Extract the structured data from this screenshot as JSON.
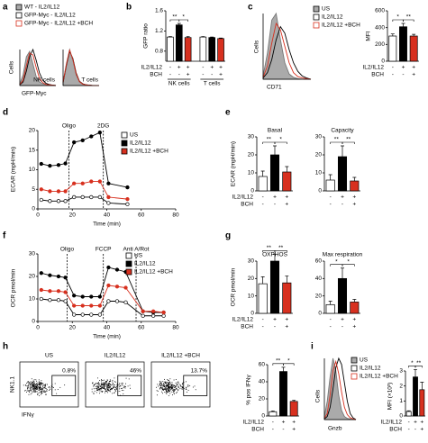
{
  "chart_data": [
    {
      "type": "density",
      "label": "a",
      "ylabel": "Cells",
      "xlabel": "GFP-Myc",
      "ylim": [
        0,
        100
      ],
      "series": [
        {
          "name": "WT - IL2/IL12",
          "color": "#aaaaaa",
          "filled": true
        },
        {
          "name": "GFP-Myc - IL2/IL12",
          "color": "#000000",
          "filled": false
        },
        {
          "name": "GFP-Myc - IL2/IL12 +BCH",
          "color": "#d7301f",
          "filled": false
        }
      ],
      "subplots": [
        {
          "title": "NK cells",
          "curves": [
            [
              5,
              30,
              80,
              95,
              60,
              25,
              10,
              5,
              3,
              2,
              1,
              0
            ],
            [
              2,
              10,
              40,
              80,
              100,
              70,
              35,
              15,
              6,
              3,
              1,
              0
            ],
            [
              3,
              15,
              55,
              90,
              85,
              50,
              20,
              8,
              3,
              2,
              1,
              0
            ]
          ]
        },
        {
          "title": "T cells",
          "curves": [
            [
              10,
              60,
              100,
              70,
              30,
              10,
              4,
              2,
              1,
              0,
              0,
              0
            ],
            [
              8,
              55,
              95,
              75,
              35,
              12,
              5,
              2,
              1,
              0,
              0,
              0
            ],
            [
              9,
              58,
              98,
              72,
              32,
              11,
              4,
              2,
              1,
              0,
              0,
              0
            ]
          ]
        }
      ]
    },
    {
      "type": "bar",
      "label": "b",
      "ylabel": "GFP ratio",
      "colors": [
        "#ffffff",
        "#000000",
        "#d7301f"
      ],
      "conditions": [
        {
          "name": "IL2/IL12",
          "signs": [
            "-",
            "+",
            "+",
            "-",
            "+",
            "+"
          ]
        },
        {
          "name": "BCH",
          "signs": [
            "-",
            "-",
            "+",
            "-",
            "-",
            "+"
          ]
        }
      ],
      "groups": [
        "NK cells",
        "T cells"
      ],
      "panels": [
        {
          "ylim": [
            0.6,
            1.6
          ],
          "yticks": [
            0.8,
            1.2,
            1.6
          ],
          "values": [
            1.08,
            1.32,
            1.07,
            1.08,
            1.07,
            1.05
          ],
          "errors": [
            0.01,
            0.03,
            0.02,
            0.01,
            0.01,
            0.01
          ],
          "stars": [
            "**",
            "*"
          ]
        }
      ]
    },
    {
      "type": "density",
      "label": "c",
      "ylabel": "Cells",
      "xlabel": "CD71",
      "ylim": [
        0,
        100
      ],
      "series": [
        {
          "name": "US",
          "color": "#aaaaaa",
          "filled": true
        },
        {
          "name": "IL2/IL12",
          "color": "#000000",
          "filled": false
        },
        {
          "name": "IL2/IL12 +BCH",
          "color": "#d7301f",
          "filled": false
        }
      ],
      "subplots": [
        {
          "curves": [
            [
              5,
              40,
              90,
              100,
              60,
              25,
              8,
              3,
              1,
              0,
              0,
              0
            ],
            [
              2,
              10,
              30,
              60,
              80,
              70,
              45,
              25,
              12,
              5,
              2,
              0
            ],
            [
              3,
              20,
              55,
              85,
              75,
              50,
              25,
              10,
              4,
              2,
              1,
              0
            ]
          ]
        }
      ]
    },
    {
      "type": "bar",
      "ylabel": "MFI",
      "colors": [
        "#ffffff",
        "#000000",
        "#d7301f"
      ],
      "conditions": [
        {
          "name": "IL2/IL12",
          "signs": [
            "-",
            "+",
            "+"
          ]
        },
        {
          "name": "BCH",
          "signs": [
            "-",
            "-",
            "+"
          ]
        }
      ],
      "panels": [
        {
          "ylim": [
            0,
            600
          ],
          "yticks": [
            0,
            200,
            400,
            600
          ],
          "values": [
            300,
            410,
            300
          ],
          "errors": [
            25,
            40,
            20
          ],
          "stars": [
            "*",
            "**"
          ]
        }
      ]
    },
    {
      "type": "line",
      "label": "d",
      "ylabel": "ECAR (mpH/min)",
      "xlabel": "Time (min)",
      "xlim": [
        0,
        80
      ],
      "xticks": [
        0,
        20,
        40,
        60,
        80
      ],
      "ylim": [
        0,
        20
      ],
      "yticks": [
        0,
        5,
        10,
        15,
        20
      ],
      "events": [
        {
          "label": "Oligo",
          "x": 18
        },
        {
          "label": "2DG",
          "x": 38
        }
      ],
      "x": [
        2,
        7,
        12,
        16,
        21,
        26,
        31,
        36,
        41,
        52
      ],
      "series": [
        {
          "name": "US",
          "color": "#ffffff",
          "values": [
            2.3,
            2,
            2,
            2,
            3,
            3,
            3,
            3,
            1.5,
            1.2
          ]
        },
        {
          "name": "IL2/IL12",
          "color": "#000000",
          "values": [
            11.5,
            11,
            11.2,
            11.6,
            17,
            17.5,
            18.5,
            19.5,
            6.5,
            5.5
          ]
        },
        {
          "name": "IL2/IL12 +BCH",
          "color": "#d7301f",
          "values": [
            5,
            4.5,
            4.5,
            4.5,
            6.5,
            6.5,
            7,
            7,
            3,
            2.5
          ]
        }
      ]
    },
    {
      "type": "bar",
      "label": "e",
      "ylabel": "ECAR (mpH/min)",
      "colors": [
        "#ffffff",
        "#000000",
        "#d7301f"
      ],
      "conditions": [
        {
          "name": "IL2/IL12",
          "signs": [
            "-",
            "+",
            "+"
          ]
        },
        {
          "name": "BCH",
          "signs": [
            "-",
            "-",
            "+"
          ]
        }
      ],
      "panels": [
        {
          "title": "Basal",
          "ylim": [
            0,
            30
          ],
          "yticks": [
            0,
            10,
            20,
            30
          ],
          "values": [
            8,
            20,
            10.5
          ],
          "errors": [
            3,
            5,
            3
          ],
          "stars": [
            "**",
            "*"
          ]
        },
        {
          "title": "Capacity",
          "ylim": [
            0,
            30
          ],
          "yticks": [
            0,
            10,
            20,
            30
          ],
          "values": [
            6,
            19,
            5.5
          ],
          "errors": [
            3,
            6,
            2
          ],
          "stars": [
            "**",
            "**"
          ]
        }
      ]
    },
    {
      "type": "line",
      "label": "f",
      "ylabel": "OCR pmol/min",
      "xlabel": "Time (min)",
      "xlim": [
        0,
        80
      ],
      "xticks": [
        0,
        20,
        40,
        60,
        80
      ],
      "ylim": [
        0,
        30
      ],
      "yticks": [
        0,
        10,
        20,
        30
      ],
      "events": [
        {
          "label": "Oligo",
          "x": 17
        },
        {
          "label": "FCCP",
          "x": 38
        },
        {
          "label": "Anti A/Rot",
          "x": 57
        }
      ],
      "x": [
        2,
        7,
        12,
        16,
        21,
        26,
        31,
        36,
        41,
        46,
        51,
        61,
        67,
        73
      ],
      "series": [
        {
          "name": "US",
          "color": "#ffffff",
          "values": [
            10,
            9.5,
            9.5,
            9,
            3,
            3,
            3,
            3,
            9,
            9,
            8.5,
            2.5,
            2.5,
            2.5
          ]
        },
        {
          "name": "IL2/IL12",
          "color": "#000000",
          "values": [
            21.5,
            20.5,
            20,
            19.5,
            11.5,
            11,
            11,
            11,
            24,
            23,
            22,
            4.5,
            4,
            4
          ]
        },
        {
          "name": "IL2/IL12 +BCH",
          "color": "#d7301f",
          "values": [
            14,
            13.5,
            13.5,
            13,
            7,
            7,
            7,
            7,
            16,
            15.5,
            15,
            4.5,
            4.5,
            4
          ]
        }
      ]
    },
    {
      "type": "bar",
      "label": "g",
      "ylabel": "OCR pmol/min",
      "colors": [
        "#ffffff",
        "#000000",
        "#d7301f"
      ],
      "conditions": [
        {
          "name": "IL2/IL12",
          "signs": [
            "-",
            "+",
            "+"
          ]
        },
        {
          "name": "BCH",
          "signs": [
            "-",
            "-",
            "+"
          ]
        }
      ],
      "panels": [
        {
          "title": "OXPHOS",
          "ylim": [
            0,
            30
          ],
          "yticks": [
            0,
            10,
            20,
            30
          ],
          "values": [
            17,
            30,
            17.5
          ],
          "errors": [
            4,
            4,
            4
          ],
          "stars": [
            "**",
            "**"
          ]
        },
        {
          "title": "Max respiration",
          "ylim": [
            0,
            60
          ],
          "yticks": [
            0,
            20,
            40,
            60
          ],
          "values": [
            10,
            40,
            13
          ],
          "errors": [
            4,
            12,
            3
          ],
          "stars": [
            "*",
            "*"
          ]
        }
      ]
    },
    {
      "type": "dotplot",
      "label": "h",
      "ylabel": "NK1.1",
      "xlabel": "IFNγ",
      "panels": [
        {
          "title": "US",
          "gate": "0.8%"
        },
        {
          "title": "IL2/IL12",
          "gate": "46%"
        },
        {
          "title": "IL2/IL12 +BCH",
          "gate": "13.7%"
        }
      ]
    },
    {
      "type": "bar",
      "ylabel": "% pos IFNγ",
      "colors": [
        "#ffffff",
        "#000000",
        "#d7301f"
      ],
      "conditions": [
        {
          "name": "IL2/IL12",
          "signs": [
            "-",
            "+",
            "+"
          ]
        },
        {
          "name": "BCH",
          "signs": [
            "-",
            "-",
            "+"
          ]
        }
      ],
      "panels": [
        {
          "ylim": [
            0,
            60
          ],
          "yticks": [
            0,
            20,
            40,
            60
          ],
          "values": [
            5,
            52,
            17
          ],
          "errors": [
            1,
            5,
            1.5
          ],
          "stars": [
            "**",
            "*"
          ]
        }
      ]
    },
    {
      "type": "density",
      "label": "i",
      "ylabel": "Cells",
      "xlabel": "Gnzb",
      "ylim": [
        0,
        100
      ],
      "series": [
        {
          "name": "US",
          "color": "#aaaaaa",
          "filled": true
        },
        {
          "name": "IL2/IL12",
          "color": "#000000",
          "filled": false
        },
        {
          "name": "IL2/IL12 +BCH",
          "color": "#d7301f",
          "filled": false
        }
      ],
      "subplots": [
        {
          "curves": [
            [
              5,
              30,
              70,
              100,
              80,
              40,
              15,
              5,
              2,
              1,
              0,
              0
            ],
            [
              1,
              5,
              20,
              50,
              85,
              100,
              90,
              60,
              30,
              10,
              3,
              0
            ],
            [
              2,
              10,
              40,
              80,
              95,
              75,
              45,
              20,
              8,
              3,
              1,
              0
            ]
          ]
        }
      ]
    },
    {
      "type": "bar",
      "ylabel": "MFI (×10³)",
      "colors": [
        "#ffffff",
        "#000000",
        "#d7301f"
      ],
      "conditions": [
        {
          "name": "IL2/IL12",
          "signs": [
            "-",
            "+",
            "+"
          ]
        },
        {
          "name": "BCH",
          "signs": [
            "-",
            "-",
            "+"
          ]
        }
      ],
      "panels": [
        {
          "ylim": [
            0,
            3
          ],
          "yticks": [
            0,
            1,
            2,
            3
          ],
          "values": [
            0.3,
            2.6,
            1.75
          ],
          "errors": [
            0.05,
            0.5,
            0.5
          ],
          "stars": [
            "*",
            "**"
          ]
        }
      ]
    }
  ]
}
